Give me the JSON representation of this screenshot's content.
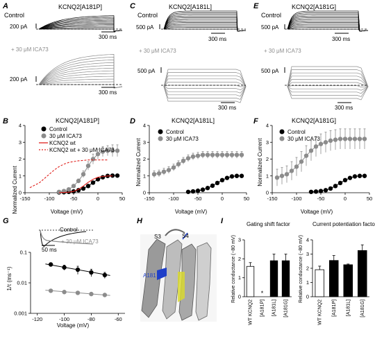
{
  "panels": {
    "A": {
      "letter": "A",
      "title": "KCNQ2[A181P]",
      "control": "Control",
      "scale_top": "200 pA",
      "time_top": "300 ms",
      "ica": "+ 30 μM ICA73",
      "scale_bot": "200 pA",
      "time_bot": "300 ms"
    },
    "C": {
      "letter": "C",
      "title": "KCNQ2[A181L]",
      "control": "Control",
      "scale_top": "500 pA",
      "time_top": "300 ms",
      "ica": "+ 30 μM ICA73",
      "scale_bot": "500 pA",
      "time_bot": "300 ms"
    },
    "E": {
      "letter": "E",
      "title": "KCNQ2[A181G]",
      "control": "Control",
      "scale_top": "500 pA",
      "time_top": "300 ms",
      "ica": "+ 30 μM ICA73",
      "scale_bot": "500 pA",
      "time_bot": "300 ms"
    },
    "B": {
      "letter": "B",
      "title": "KCNQ2[A181P]",
      "legend": [
        "Control",
        "30 μM ICA73",
        "KCNQ2 wt",
        "KCNQ2 wt + 30 μM ICA73"
      ]
    },
    "D": {
      "letter": "D",
      "title": "KCNQ2[A181L]",
      "legend": [
        "Control",
        "30 μM ICA73"
      ]
    },
    "F": {
      "letter": "F",
      "title": "KCNQ2[A181G]",
      "legend": [
        "Control",
        "30 μM ICA73"
      ]
    },
    "G": {
      "letter": "G",
      "legend_control": "Control",
      "legend_ica": "+ 30 μM ICA73",
      "time": "50 ms",
      "ylabel": "1/τ (ms⁻¹)",
      "xlabel": "Voltage (mV)"
    },
    "H": {
      "letter": "H",
      "s3": "S3",
      "s4": "S4",
      "residue": "A181"
    },
    "I": {
      "letter": "I",
      "title_left": "Gating shift factor",
      "title_right": "Current potentiation factor",
      "ylabel": "Relative conductance (−80 mV)",
      "star": "*"
    }
  },
  "common": {
    "ylabel": "Normalized Current",
    "xlabel": "Voltage (mV)"
  },
  "colors": {
    "control": "#000000",
    "ica": "#8c8c8c",
    "wt": "#e0201c",
    "helix_blue": "#1f3fc8",
    "helix_yellow": "#d8d830"
  },
  "chart_data": [
    {
      "type": "scatter",
      "panel": "B",
      "title": "KCNQ2[A181P]",
      "xlabel": "Voltage (mV)",
      "ylabel": "Normalized Current",
      "xlim": [
        -150,
        50
      ],
      "ylim": [
        0,
        4
      ],
      "x_ticks": [
        -150,
        -100,
        -50,
        0,
        50
      ],
      "y_ticks": [
        0,
        1,
        2,
        3,
        4
      ],
      "series": [
        {
          "name": "Control",
          "x": [
            -80,
            -70,
            -60,
            -50,
            -40,
            -30,
            -20,
            -10,
            0,
            10,
            20,
            30,
            40
          ],
          "y": [
            0.02,
            0.03,
            0.05,
            0.08,
            0.15,
            0.25,
            0.4,
            0.6,
            0.8,
            0.92,
            1.0,
            1.02,
            1.02
          ]
        },
        {
          "name": "30 μM ICA73",
          "x": [
            -80,
            -70,
            -60,
            -50,
            -40,
            -30,
            -20,
            -10,
            0,
            10,
            20,
            30,
            40
          ],
          "y": [
            0.05,
            0.1,
            0.2,
            0.4,
            0.7,
            1.1,
            1.6,
            2.0,
            2.3,
            2.45,
            2.5,
            2.5,
            2.5
          ],
          "err": [
            0.02,
            0.03,
            0.05,
            0.08,
            0.12,
            0.2,
            0.25,
            0.3,
            0.3,
            0.3,
            0.3,
            0.35,
            0.35
          ]
        },
        {
          "name": "KCNQ2 wt",
          "style": "line",
          "x": [
            -80,
            -60,
            -50,
            -40,
            -30,
            -20,
            -10,
            0,
            10,
            20,
            30
          ],
          "y": [
            0.01,
            0.03,
            0.08,
            0.2,
            0.4,
            0.62,
            0.8,
            0.92,
            0.97,
            1.0,
            1.0
          ]
        },
        {
          "name": "KCNQ2 wt + 30 μM ICA73",
          "style": "dashed",
          "x": [
            -140,
            -130,
            -120,
            -110,
            -100,
            -90,
            -80,
            -70,
            -60,
            -50,
            -40,
            -30,
            -20,
            -10,
            0,
            10,
            20
          ],
          "y": [
            0.3,
            0.45,
            0.6,
            0.85,
            1.1,
            1.35,
            1.55,
            1.7,
            1.8,
            1.85,
            1.9,
            1.92,
            1.95,
            1.95,
            1.95,
            1.95,
            1.95
          ]
        }
      ]
    },
    {
      "type": "scatter",
      "panel": "D",
      "title": "KCNQ2[A181L]",
      "xlabel": "Voltage (mV)",
      "ylabel": "Normalized Current",
      "xlim": [
        -150,
        50
      ],
      "ylim": [
        0,
        4
      ],
      "x_ticks": [
        -150,
        -100,
        -50,
        0,
        50
      ],
      "y_ticks": [
        0,
        1,
        2,
        3,
        4
      ],
      "series": [
        {
          "name": "Control",
          "x": [
            -70,
            -60,
            -50,
            -40,
            -30,
            -20,
            -10,
            0,
            10,
            20,
            30,
            40
          ],
          "y": [
            0.05,
            0.08,
            0.12,
            0.18,
            0.28,
            0.42,
            0.58,
            0.75,
            0.88,
            0.97,
            1.0,
            1.0
          ]
        },
        {
          "name": "30 μM ICA73",
          "x": [
            -140,
            -130,
            -120,
            -110,
            -100,
            -90,
            -80,
            -70,
            -60,
            -50,
            -40,
            -30,
            -20,
            -10,
            0,
            10,
            20,
            30,
            40
          ],
          "y": [
            1.1,
            1.15,
            1.25,
            1.35,
            1.5,
            1.7,
            1.9,
            2.05,
            2.15,
            2.2,
            2.25,
            2.25,
            2.25,
            2.25,
            2.25,
            2.25,
            2.25,
            2.25,
            2.25
          ],
          "err": [
            0.2,
            0.2,
            0.2,
            0.2,
            0.2,
            0.2,
            0.2,
            0.2,
            0.2,
            0.2,
            0.2,
            0.2,
            0.2,
            0.2,
            0.2,
            0.2,
            0.2,
            0.2,
            0.2
          ]
        }
      ]
    },
    {
      "type": "scatter",
      "panel": "F",
      "title": "KCNQ2[A181G]",
      "xlabel": "Voltage (mV)",
      "ylabel": "Normalized Current",
      "xlim": [
        -150,
        50
      ],
      "ylim": [
        0,
        4
      ],
      "x_ticks": [
        -150,
        -100,
        -50,
        0,
        50
      ],
      "y_ticks": [
        0,
        1,
        2,
        3,
        4
      ],
      "series": [
        {
          "name": "Control",
          "x": [
            -70,
            -60,
            -50,
            -40,
            -30,
            -20,
            -10,
            0,
            10,
            20,
            30,
            40
          ],
          "y": [
            0.05,
            0.07,
            0.1,
            0.15,
            0.25,
            0.4,
            0.58,
            0.75,
            0.88,
            0.97,
            1.0,
            1.0
          ]
        },
        {
          "name": "30 μM ICA73",
          "x": [
            -140,
            -130,
            -120,
            -110,
            -100,
            -90,
            -80,
            -70,
            -60,
            -50,
            -40,
            -30,
            -20,
            -10,
            0,
            10,
            20,
            30,
            40
          ],
          "y": [
            0.9,
            1.0,
            1.1,
            1.3,
            1.55,
            1.85,
            2.2,
            2.5,
            2.75,
            2.9,
            3.0,
            3.1,
            3.15,
            3.2,
            3.2,
            3.2,
            3.2,
            3.2,
            3.2
          ],
          "err": [
            0.5,
            0.5,
            0.5,
            0.55,
            0.55,
            0.6,
            0.6,
            0.6,
            0.6,
            0.6,
            0.6,
            0.6,
            0.6,
            0.6,
            0.6,
            0.6,
            0.6,
            0.6,
            0.6
          ]
        }
      ]
    },
    {
      "type": "scatter",
      "panel": "G",
      "xlabel": "Voltage (mV)",
      "ylabel": "1/τ (ms⁻¹)",
      "xlim": [
        -125,
        -55
      ],
      "ylim": [
        0.001,
        0.1
      ],
      "yscale": "log",
      "x_ticks": [
        -120,
        -100,
        -80,
        -60
      ],
      "y_ticks": [
        0.001,
        0.01,
        0.1
      ],
      "series": [
        {
          "name": "Control",
          "x": [
            -110,
            -100,
            -90,
            -80,
            -70
          ],
          "y": [
            0.04,
            0.032,
            0.027,
            0.022,
            0.018
          ],
          "err": [
            0.005,
            0.006,
            0.008,
            0.006,
            0.004
          ]
        },
        {
          "name": "+ 30 μM ICA73",
          "x": [
            -110,
            -100,
            -90,
            -80,
            -70
          ],
          "y": [
            0.0055,
            0.005,
            0.0047,
            0.0043,
            0.004
          ]
        }
      ]
    },
    {
      "type": "bar",
      "panel": "I",
      "title": "Gating shift factor",
      "ylabel": "Relative conductance (−80 mV)",
      "categories": [
        "WT KCNQ2",
        "[A181P]",
        "[A181L]",
        "[A181G]"
      ],
      "values": [
        1.6,
        0.0,
        1.9,
        1.9
      ],
      "err": [
        0.2,
        0.0,
        0.35,
        0.35
      ],
      "ylim": [
        0,
        3
      ],
      "y_ticks": [
        0,
        1,
        2,
        3
      ],
      "annotation": "*"
    },
    {
      "type": "bar",
      "panel": "I",
      "title": "Current potentiation factor",
      "ylabel": "Relative conductance (−80 mV)",
      "categories": [
        "WT KCNQ2",
        "[A181P]",
        "[A181L]",
        "[A181G]"
      ],
      "values": [
        1.9,
        2.55,
        2.25,
        3.25
      ],
      "err": [
        0.25,
        0.35,
        0.05,
        0.4
      ],
      "ylim": [
        0,
        4
      ],
      "y_ticks": [
        0,
        1,
        2,
        3,
        4
      ]
    }
  ]
}
